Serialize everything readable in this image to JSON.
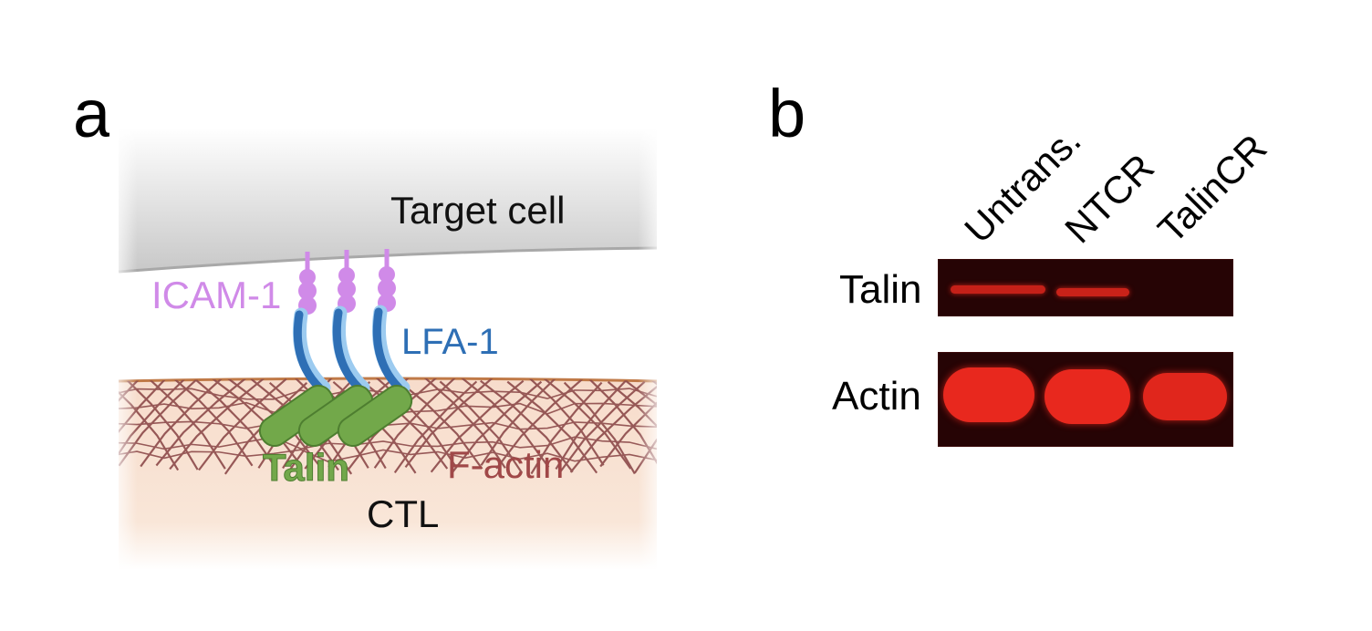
{
  "panel_a": {
    "letter": "a",
    "labels": {
      "target_cell": "Target cell",
      "icam": "ICAM-1",
      "lfa": "LFA-1",
      "talin": "Talin",
      "factin": "F-actin",
      "ctl": "CTL"
    },
    "colors": {
      "icam": "#d08ae8",
      "lfa": "#3a7fc4",
      "talin": "#72a84a",
      "factin": "#a04848",
      "membrane_target": "#b8b8b8",
      "membrane_ctl": "#c98a5a"
    }
  },
  "panel_b": {
    "letter": "b",
    "lanes": [
      "Untrans.",
      "NTCR",
      "TalinCR"
    ],
    "rows": [
      "Talin",
      "Actin"
    ],
    "band_color": "#e8281e",
    "talin_band_intensity": [
      0.7,
      0.75,
      0.0
    ],
    "actin_band_intensity": [
      1.0,
      1.0,
      0.9
    ]
  }
}
